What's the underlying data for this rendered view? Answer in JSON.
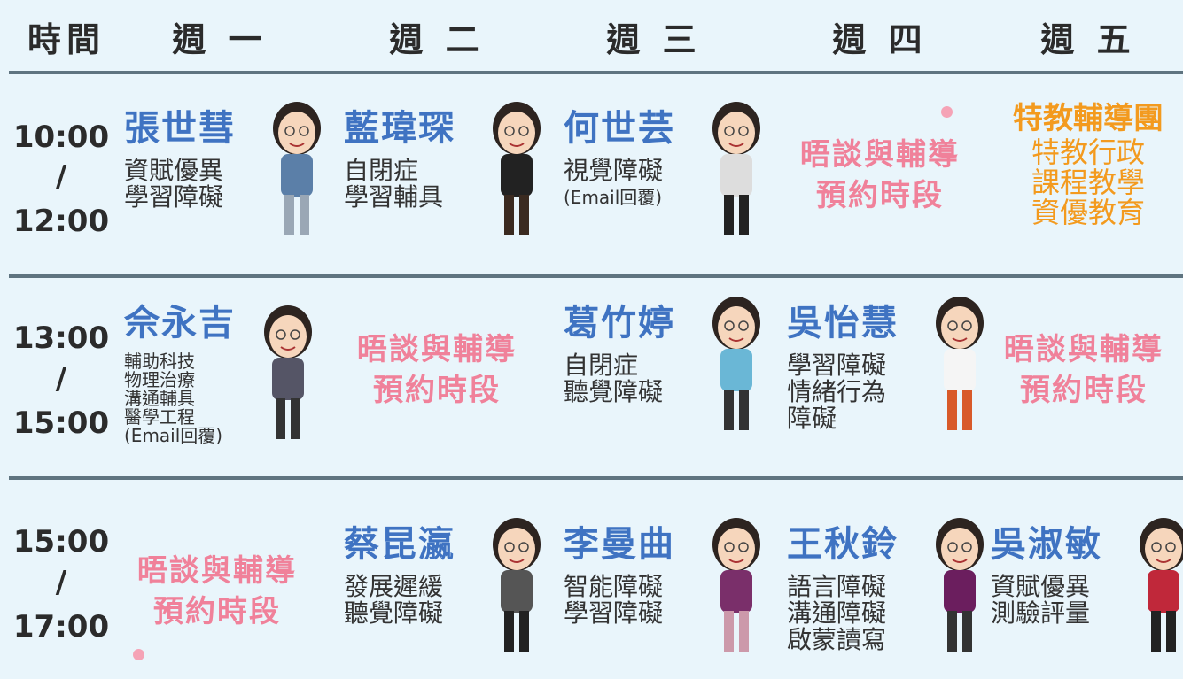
{
  "header": [
    "時間",
    "週 一",
    "週 二",
    "週 三",
    "週 四",
    "週 五"
  ],
  "rows": [
    {
      "time": [
        "10:00",
        "/",
        "12:00"
      ],
      "cells": [
        {
          "name": "張世彗",
          "topics": [
            "資賦優異",
            "學習障礙"
          ]
        },
        {
          "name": "藍瑋琛",
          "topics": [
            "自閉症",
            "學習輔具"
          ]
        },
        {
          "name": "何世芸",
          "topics": [
            "視覺障礙",
            "(Email回覆)"
          ]
        },
        {
          "booking": [
            "晤談與輔導",
            "預約時段"
          ]
        },
        {
          "group": "特教輔導團",
          "topics": [
            "特教行政",
            "課程教學",
            "資優教育"
          ]
        }
      ]
    },
    {
      "time": [
        "13:00",
        "/",
        "15:00"
      ],
      "cells": [
        {
          "name": "佘永吉",
          "topics": [
            "輔助科技",
            "物理治療",
            "溝通輔具",
            "醫學工程",
            "(Email回覆)"
          ]
        },
        {
          "booking": [
            "晤談與輔導",
            "預約時段"
          ]
        },
        {
          "name": "葛竹婷",
          "topics": [
            "自閉症",
            "聽覺障礙"
          ]
        },
        {
          "name": "吳怡慧",
          "topics": [
            "學習障礙",
            "情緒行為",
            "障礙"
          ]
        },
        {
          "booking": [
            "晤談與輔導",
            "預約時段"
          ]
        }
      ]
    },
    {
      "time": [
        "15:00",
        "/",
        "17:00"
      ],
      "cells": [
        {
          "booking": [
            "晤談與輔導",
            "預約時段"
          ]
        },
        {
          "name": "蔡昆瀛",
          "topics": [
            "發展遲緩",
            "聽覺障礙"
          ]
        },
        {
          "name": "李曼曲",
          "topics": [
            "智能障礙",
            "學習障礙"
          ]
        },
        {
          "name": "王秋鈴",
          "topics": [
            "語言障礙",
            "溝通障礙",
            "啟蒙讀寫"
          ]
        },
        {
          "name": "吳淑敏",
          "topics": [
            "資賦優異",
            "測驗評量"
          ]
        }
      ]
    }
  ]
}
